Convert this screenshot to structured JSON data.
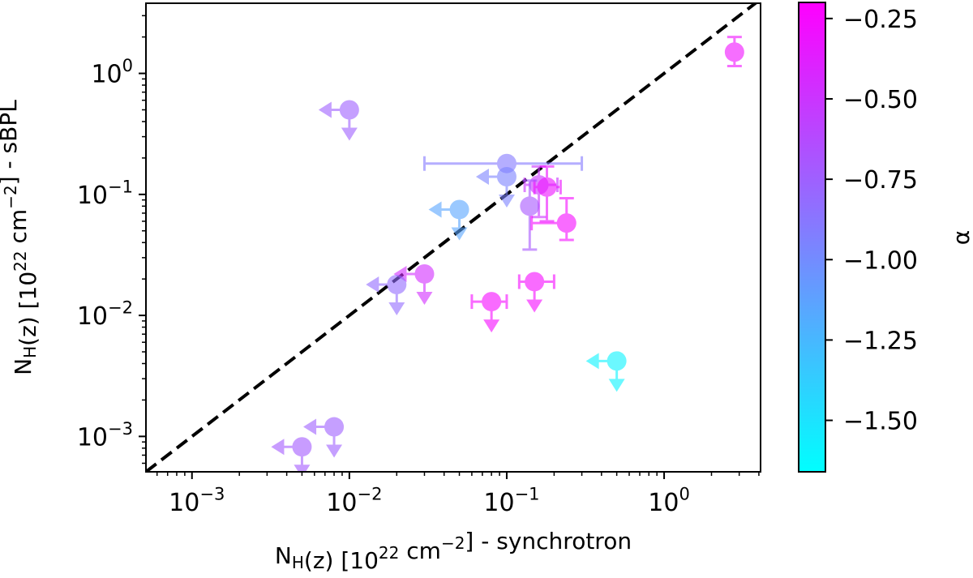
{
  "chart_data": {
    "type": "scatter",
    "x_scale": "log",
    "y_scale": "log",
    "xlim": [
      0.00051,
      4.1
    ],
    "ylim": [
      0.00051,
      3.8
    ],
    "grid": false,
    "xlabel": [
      {
        "t": "N"
      },
      {
        "t": "H",
        "sub": true
      },
      {
        "t": "(z) [10"
      },
      {
        "t": "22",
        "sup": true
      },
      {
        "t": " cm"
      },
      {
        "t": "−2",
        "sup": true
      },
      {
        "t": "] - synchrotron"
      }
    ],
    "ylabel": [
      {
        "t": "N"
      },
      {
        "t": "H",
        "sub": true
      },
      {
        "t": "(z) [10"
      },
      {
        "t": "22",
        "sup": true
      },
      {
        "t": " cm"
      },
      {
        "t": "−2",
        "sup": true
      },
      {
        "t": "] - sBPL"
      }
    ],
    "x_ticks": [
      {
        "value": 0.001,
        "base": "10",
        "exp": "−3"
      },
      {
        "value": 0.01,
        "base": "10",
        "exp": "−2"
      },
      {
        "value": 0.1,
        "base": "10",
        "exp": "−1"
      },
      {
        "value": 1,
        "base": "10",
        "exp": "0"
      }
    ],
    "y_ticks": [
      {
        "value": 0.001,
        "base": "10",
        "exp": "−3"
      },
      {
        "value": 0.01,
        "base": "10",
        "exp": "−2"
      },
      {
        "value": 0.1,
        "base": "10",
        "exp": "−1"
      },
      {
        "value": 1,
        "base": "10",
        "exp": "0"
      }
    ],
    "reference_line": {
      "type": "y=x",
      "style": "dashed",
      "color": "#000000"
    },
    "colorbar": {
      "label": "α",
      "colormap": "cool",
      "range": [
        -1.66,
        -0.2
      ],
      "ticks": [
        "−0.25",
        "−0.50",
        "−0.75",
        "−1.00",
        "−1.25",
        "−1.50"
      ],
      "tick_values": [
        -0.25,
        -0.5,
        -0.75,
        -1.0,
        -1.25,
        -1.5
      ],
      "min_color": "#00ffff",
      "max_color": "#ff00ff"
    },
    "points": [
      {
        "x": 2.8,
        "y": 1.5,
        "alpha": -0.28,
        "yerr": [
          1.15,
          2.0
        ]
      },
      {
        "x": 0.01,
        "y": 0.5,
        "alpha": -0.75,
        "x_upper_limit": true,
        "y_upper_limit": true
      },
      {
        "x": 0.1,
        "y": 0.18,
        "alpha": -0.9,
        "xerr": [
          0.03,
          0.3
        ]
      },
      {
        "x": 0.1,
        "y": 0.14,
        "alpha": -0.95,
        "x_upper_limit": true,
        "y_upper_limit": true
      },
      {
        "x": 0.05,
        "y": 0.075,
        "alpha": -1.15,
        "x_upper_limit": true,
        "y_upper_limit": true
      },
      {
        "x": 0.16,
        "y": 0.12,
        "alpha": -0.5,
        "xerr": [
          0.13,
          0.21
        ],
        "yerr": [
          0.065,
          0.17
        ]
      },
      {
        "x": 0.18,
        "y": 0.115,
        "alpha": -0.3,
        "xerr": [
          0.15,
          0.22
        ],
        "yerr": [
          0.06,
          0.17
        ]
      },
      {
        "x": 0.14,
        "y": 0.08,
        "alpha": -0.7,
        "yerr": [
          0.035,
          0.13
        ]
      },
      {
        "x": 0.24,
        "y": 0.058,
        "alpha": -0.25,
        "xerr": [
          0.144,
          0.24
        ],
        "yerr": [
          0.042,
          0.093
        ]
      },
      {
        "x": 0.03,
        "y": 0.022,
        "alpha": -0.45,
        "x_upper_limit": true,
        "y_upper_limit": true
      },
      {
        "x": 0.02,
        "y": 0.018,
        "alpha": -0.82,
        "x_upper_limit": true,
        "y_upper_limit": true
      },
      {
        "x": 0.08,
        "y": 0.013,
        "alpha": -0.25,
        "xerr": [
          0.06,
          0.1
        ],
        "y_upper_limit": true
      },
      {
        "x": 0.15,
        "y": 0.019,
        "alpha": -0.25,
        "xerr": [
          0.12,
          0.2
        ],
        "y_upper_limit": true
      },
      {
        "x": 0.5,
        "y": 0.0042,
        "alpha": -1.6,
        "x_upper_limit": true,
        "y_upper_limit": true
      },
      {
        "x": 0.008,
        "y": 0.0012,
        "alpha": -0.75,
        "x_upper_limit": true,
        "y_upper_limit": true
      },
      {
        "x": 0.005,
        "y": 0.00082,
        "alpha": -0.72,
        "x_upper_limit": true,
        "y_upper_limit": true
      }
    ]
  }
}
